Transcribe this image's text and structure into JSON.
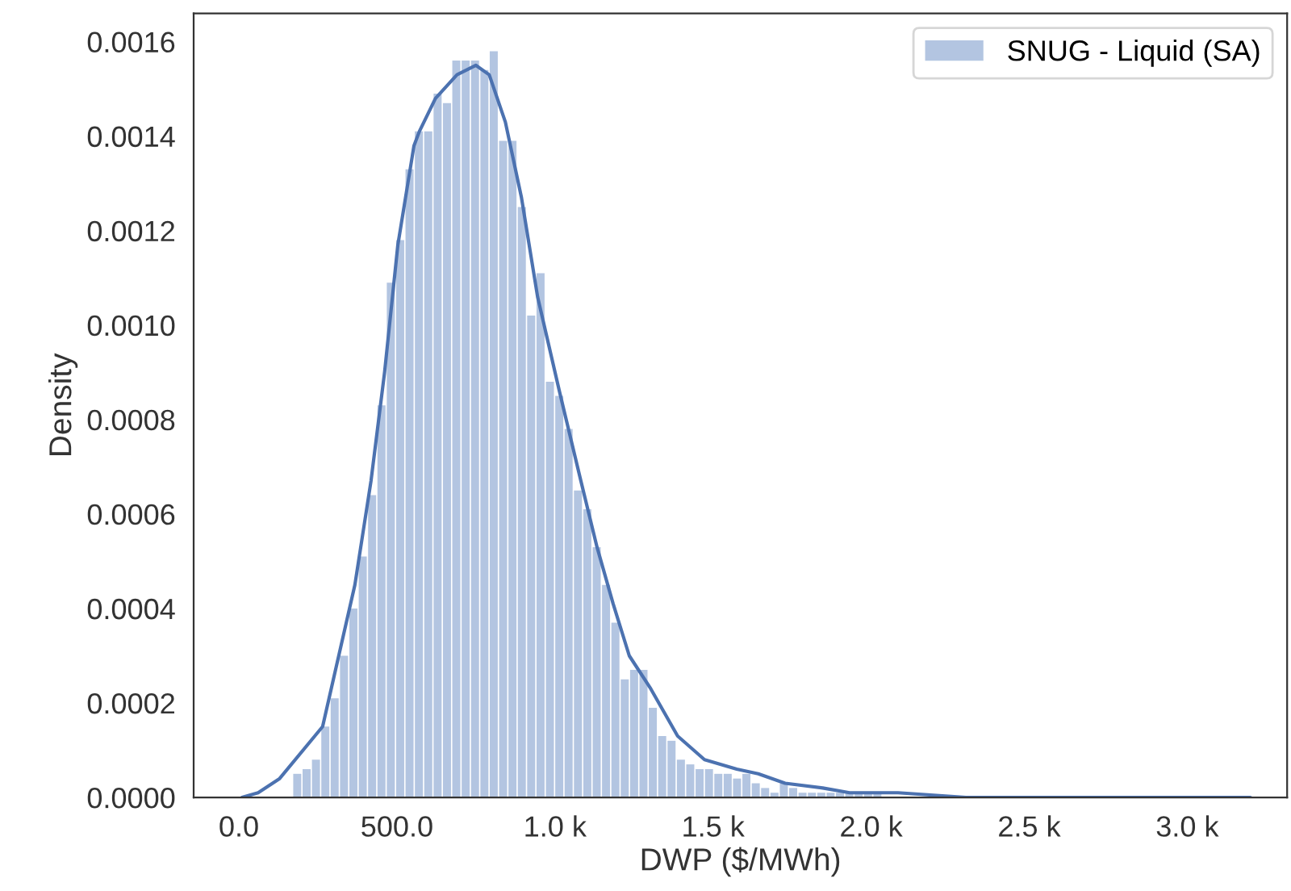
{
  "chart_data": {
    "type": "histogram",
    "xlabel": "DWP ($/MWh)",
    "ylabel": "Density",
    "bins": [
      172,
      201.6,
      231.2,
      260.8,
      290.4,
      320,
      349.6,
      379.2,
      408.8,
      438.4,
      468,
      497.6,
      527.2,
      556.8,
      586.4,
      616,
      645.6,
      675.2,
      704.8,
      734.4,
      764,
      793.6,
      823.2,
      852.8,
      882.4,
      912,
      941.6,
      971.2,
      1000.8,
      1030.4,
      1060,
      1089.6,
      1119.2,
      1148.8,
      1178.4,
      1208,
      1237.6,
      1267.2,
      1296.8,
      1326.4,
      1356,
      1385.6,
      1415.2,
      1444.8,
      1474.4,
      1504,
      1533.6,
      1563.2,
      1592.8,
      1622.4,
      1652,
      1681.6,
      1711.2,
      1740.8,
      1770.4,
      1800,
      1829.6,
      1859.2,
      1888.8,
      1918.4,
      1948,
      1977.6,
      2007.2,
      2036.8,
      2066.4,
      2096,
      2125.6,
      2155.2,
      2184.8,
      2214.4,
      2244,
      2273.6,
      2303.2,
      2332.8,
      2362.4,
      2392,
      2421.6,
      2451.2,
      2480.8,
      2510.4,
      2540,
      2569.6,
      2599.2,
      2628.8,
      2658.4,
      2688,
      2717.6,
      2747.2,
      2776.8,
      2806.4,
      2836,
      2865.6,
      2895.2,
      2924.8,
      2954.4,
      2984,
      3013.6,
      3043.2,
      3072.8,
      3102.4,
      3132,
      3161.6,
      3191.2
    ],
    "series": [
      {
        "name": "SNUG - Liquid (SA)",
        "color": "#b3c5e1",
        "values": [
          5e-05,
          6e-05,
          8e-05,
          0.00015,
          0.00021,
          0.0003,
          0.0004,
          0.00051,
          0.00064,
          0.00083,
          0.00109,
          0.00118,
          0.00133,
          0.00141,
          0.00141,
          0.00149,
          0.00147,
          0.00156,
          0.00156,
          0.00156,
          0.00154,
          0.00158,
          0.00139,
          0.00139,
          0.00125,
          0.00102,
          0.00111,
          0.00088,
          0.00085,
          0.00078,
          0.00065,
          0.00061,
          0.00053,
          0.00045,
          0.00037,
          0.00025,
          0.00027,
          0.00027,
          0.00019,
          0.00013,
          0.00012,
          8e-05,
          7e-05,
          6e-05,
          6e-05,
          5e-05,
          5e-05,
          4e-05,
          5e-05,
          3e-05,
          2e-05,
          1e-05,
          3e-05,
          2e-05,
          1e-05,
          1e-05,
          1e-05,
          1e-05,
          1e-05,
          1e-05,
          1e-05,
          1e-05,
          1e-05,
          0,
          0,
          0,
          0,
          0,
          0,
          0,
          0,
          0,
          0,
          0,
          0,
          0,
          0,
          0,
          0,
          0,
          0,
          0,
          0,
          0,
          0,
          0,
          0,
          0,
          0,
          0,
          0,
          0,
          0,
          0,
          0,
          0,
          0,
          0,
          0,
          0,
          0,
          0
        ]
      },
      {
        "type": "line",
        "color": "#4c72b0",
        "x": [
          10,
          61,
          129,
          265,
          367,
          418,
          461,
          503,
          554,
          571,
          622,
          690,
          750,
          792,
          843,
          894,
          945,
          1014,
          1082,
          1133,
          1184,
          1235,
          1303,
          1388,
          1473,
          1575,
          1643,
          1728,
          1847,
          1932,
          2000,
          2085,
          2300,
          2600,
          3000,
          3200
        ],
        "values": [
          0,
          1e-05,
          4e-05,
          0.00015,
          0.00045,
          0.00067,
          0.0009,
          0.00117,
          0.00138,
          0.00141,
          0.00148,
          0.00153,
          0.00155,
          0.00153,
          0.00143,
          0.00127,
          0.00106,
          0.00086,
          0.00067,
          0.00053,
          0.00041,
          0.0003,
          0.00023,
          0.00013,
          8e-05,
          6e-05,
          5e-05,
          3e-05,
          2e-05,
          1e-05,
          1e-05,
          1e-05,
          0,
          0,
          0,
          0
        ]
      }
    ],
    "xlim": [
      -143,
      3316
    ],
    "ylim": [
      0,
      0.00166
    ],
    "xticks": [
      {
        "value": 0,
        "label": "0.0"
      },
      {
        "value": 500,
        "label": "500.0"
      },
      {
        "value": 1000,
        "label": "1.0 k"
      },
      {
        "value": 1500,
        "label": "1.5 k"
      },
      {
        "value": 2000,
        "label": "2.0 k"
      },
      {
        "value": 2500,
        "label": "2.5 k"
      },
      {
        "value": 3000,
        "label": "3.0 k"
      }
    ],
    "yticks": [
      {
        "value": 0,
        "label": "0.0000"
      },
      {
        "value": 0.0002,
        "label": "0.0002"
      },
      {
        "value": 0.0004,
        "label": "0.0004"
      },
      {
        "value": 0.0006,
        "label": "0.0006"
      },
      {
        "value": 0.0008,
        "label": "0.0008"
      },
      {
        "value": 0.001,
        "label": "0.0010"
      },
      {
        "value": 0.0012,
        "label": "0.0012"
      },
      {
        "value": 0.0014,
        "label": "0.0014"
      },
      {
        "value": 0.0016,
        "label": "0.0016"
      }
    ],
    "grid": false,
    "legend": "top right"
  }
}
